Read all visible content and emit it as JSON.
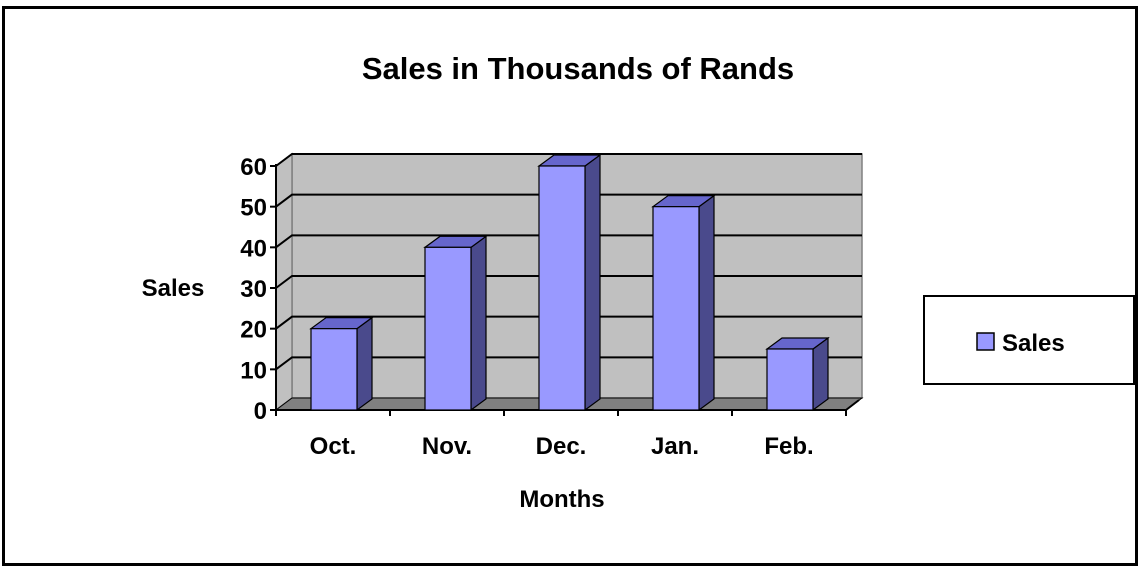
{
  "chart_data": {
    "type": "bar",
    "title": "Sales in Thousands of Rands",
    "xlabel": "Months",
    "ylabel": "Sales",
    "categories": [
      "Oct.",
      "Nov.",
      "Dec.",
      "Jan.",
      "Feb."
    ],
    "series": [
      {
        "name": "Sales",
        "values": [
          20,
          40,
          60,
          50,
          15
        ]
      }
    ],
    "ylim": [
      0,
      60
    ],
    "yticks": [
      0,
      10,
      20,
      30,
      40,
      50,
      60
    ],
    "grid": true,
    "legend": "right",
    "three_d": true
  },
  "colors": {
    "bar_front": "#9999ff",
    "bar_side": "#4a4a8c",
    "bar_top": "#6666cc",
    "plot_wall": "#c0c0c0",
    "plot_floor": "#808080",
    "grid": "#000000"
  }
}
